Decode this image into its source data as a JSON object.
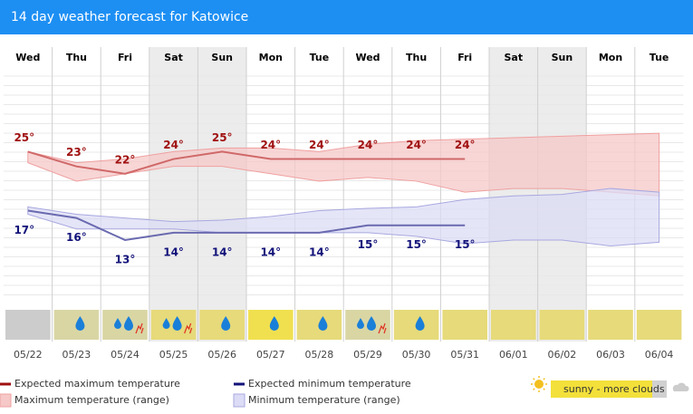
{
  "chart_data": {
    "type": "line",
    "title": "14 day weather forecast for Katowice",
    "categories": [
      "Wed",
      "Thu",
      "Fri",
      "Sat",
      "Sun",
      "Mon",
      "Tue",
      "Wed",
      "Thu",
      "Fri",
      "Sat",
      "Sun",
      "Mon",
      "Tue"
    ],
    "dates": [
      "05/22",
      "05/23",
      "05/24",
      "05/25",
      "05/26",
      "05/27",
      "05/28",
      "05/29",
      "05/30",
      "05/31",
      "06/01",
      "06/02",
      "06/03",
      "06/04"
    ],
    "weekend_color": "#ececec",
    "ylim": [
      5,
      36
    ],
    "series": [
      {
        "name": "Expected maximum temperature",
        "color": "#a01010",
        "line_color": "#d06868",
        "values": [
          25,
          23,
          22,
          24,
          25,
          24,
          24,
          24,
          24,
          24,
          null,
          null,
          null,
          null
        ],
        "value_labels": [
          "25°",
          "23°",
          "22°",
          "24°",
          "25°",
          "24°",
          "24°",
          "24°",
          "24°",
          "24°",
          null,
          null,
          null,
          null
        ]
      },
      {
        "name": "Expected minimum temperature",
        "color": "#12127a",
        "line_color": "#6a6ab0",
        "values": [
          17,
          16,
          13,
          14,
          14,
          14,
          14,
          15,
          15,
          15,
          null,
          null,
          null,
          null
        ],
        "value_labels": [
          "17°",
          "16°",
          "13°",
          "14°",
          "14°",
          "14°",
          "14°",
          "15°",
          "15°",
          "15°",
          null,
          null,
          null,
          null
        ]
      },
      {
        "name": "Maximum temperature (range)",
        "color": "#f6c8c8",
        "stroke": "#f0a0a0",
        "high": [
          25,
          23.5,
          24,
          25,
          25.5,
          25.5,
          25,
          26,
          26.5,
          26.7,
          26.9,
          27.1,
          27.3,
          27.5
        ],
        "low": [
          23.5,
          21,
          22,
          23,
          23,
          22,
          21,
          21.5,
          21,
          19.5,
          20,
          20,
          19.5,
          19
        ]
      },
      {
        "name": "Minimum temperature (range)",
        "color": "#dcdcf6",
        "stroke": "#a8a8e0",
        "high": [
          17.5,
          16.5,
          16,
          15.5,
          15.7,
          16.2,
          17,
          17.3,
          17.5,
          18.5,
          19,
          19.2,
          20,
          19.5
        ],
        "low": [
          16.5,
          14.5,
          14.5,
          14.5,
          14,
          14,
          14,
          14,
          13.5,
          12.5,
          13,
          13,
          12.2,
          12.7
        ]
      }
    ],
    "tile_colors": [
      "#cccccc",
      "#d9d6a4",
      "#d9d6a4",
      "#e6da7a",
      "#e6da7a",
      "#f0e050",
      "#e6da7a",
      "#d9d6a4",
      "#e6da7a",
      "#e6da7a",
      "#e6da7a",
      "#e6da7a",
      "#e6da7a",
      "#e6da7a"
    ],
    "icon_legend": "sunny - more clouds"
  }
}
